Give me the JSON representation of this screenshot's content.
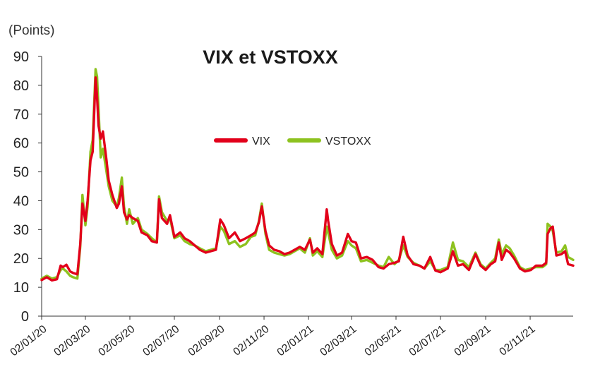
{
  "chart_data": {
    "type": "line",
    "title": "VIX et VSTOXX",
    "ylabel": "(Points)",
    "xlabel": "",
    "ylim": [
      0,
      90
    ],
    "yticks": [
      0,
      10,
      20,
      30,
      40,
      50,
      60,
      70,
      80,
      90
    ],
    "xticks": [
      "02/01/20",
      "02/03/20",
      "02/05/20",
      "02/07/20",
      "02/09/20",
      "02/11/20",
      "02/01/21",
      "02/03/21",
      "02/05/21",
      "02/07/21",
      "02/09/21",
      "02/11/21"
    ],
    "xrange": [
      "2020-01-02",
      "2021-12-31"
    ],
    "grid": false,
    "legend_position": "center",
    "series": [
      {
        "name": "VIX",
        "color": "#e2001a",
        "points": [
          [
            "2020-01-02",
            12.5
          ],
          [
            "2020-01-09",
            13.5
          ],
          [
            "2020-01-16",
            12.4
          ],
          [
            "2020-01-23",
            12.8
          ],
          [
            "2020-01-28",
            17.5
          ],
          [
            "2020-01-31",
            17.0
          ],
          [
            "2020-02-05",
            17.8
          ],
          [
            "2020-02-10",
            15.5
          ],
          [
            "2020-02-14",
            15.0
          ],
          [
            "2020-02-20",
            14.5
          ],
          [
            "2020-02-24",
            25.0
          ],
          [
            "2020-02-27",
            39.0
          ],
          [
            "2020-03-02",
            33.0
          ],
          [
            "2020-03-05",
            40.0
          ],
          [
            "2020-03-09",
            54.0
          ],
          [
            "2020-03-12",
            57.0
          ],
          [
            "2020-03-16",
            82.7
          ],
          [
            "2020-03-18",
            76.0
          ],
          [
            "2020-03-20",
            66.0
          ],
          [
            "2020-03-23",
            61.5
          ],
          [
            "2020-03-26",
            64.0
          ],
          [
            "2020-03-31",
            54.0
          ],
          [
            "2020-04-03",
            47.0
          ],
          [
            "2020-04-08",
            42.0
          ],
          [
            "2020-04-14",
            37.5
          ],
          [
            "2020-04-17",
            39.0
          ],
          [
            "2020-04-21",
            45.0
          ],
          [
            "2020-04-24",
            36.0
          ],
          [
            "2020-04-28",
            33.5
          ],
          [
            "2020-05-01",
            35.0
          ],
          [
            "2020-05-06",
            34.0
          ],
          [
            "2020-05-13",
            33.0
          ],
          [
            "2020-05-18",
            29.0
          ],
          [
            "2020-05-26",
            28.0
          ],
          [
            "2020-06-01",
            26.0
          ],
          [
            "2020-06-08",
            25.5
          ],
          [
            "2020-06-11",
            40.5
          ],
          [
            "2020-06-15",
            34.0
          ],
          [
            "2020-06-22",
            32.0
          ],
          [
            "2020-06-26",
            35.0
          ],
          [
            "2020-07-02",
            27.5
          ],
          [
            "2020-07-10",
            29.0
          ],
          [
            "2020-07-16",
            27.0
          ],
          [
            "2020-07-23",
            26.0
          ],
          [
            "2020-07-30",
            24.5
          ],
          [
            "2020-08-06",
            23.0
          ],
          [
            "2020-08-14",
            22.0
          ],
          [
            "2020-08-21",
            22.5
          ],
          [
            "2020-08-28",
            23.0
          ],
          [
            "2020-09-03",
            33.5
          ],
          [
            "2020-09-08",
            31.5
          ],
          [
            "2020-09-15",
            27.0
          ],
          [
            "2020-09-23",
            29.0
          ],
          [
            "2020-09-30",
            26.0
          ],
          [
            "2020-10-08",
            27.0
          ],
          [
            "2020-10-15",
            28.0
          ],
          [
            "2020-10-21",
            29.0
          ],
          [
            "2020-10-26",
            32.5
          ],
          [
            "2020-10-30",
            38.0
          ],
          [
            "2020-11-04",
            29.5
          ],
          [
            "2020-11-09",
            24.5
          ],
          [
            "2020-11-16",
            23.0
          ],
          [
            "2020-11-23",
            22.5
          ],
          [
            "2020-11-30",
            21.5
          ],
          [
            "2020-12-07",
            22.0
          ],
          [
            "2020-12-14",
            23.0
          ],
          [
            "2020-12-21",
            24.0
          ],
          [
            "2020-12-28",
            23.0
          ],
          [
            "2021-01-04",
            26.5
          ],
          [
            "2021-01-08",
            22.0
          ],
          [
            "2021-01-14",
            23.5
          ],
          [
            "2021-01-21",
            21.5
          ],
          [
            "2021-01-27",
            37.0
          ],
          [
            "2021-01-29",
            33.0
          ],
          [
            "2021-02-03",
            25.0
          ],
          [
            "2021-02-10",
            21.0
          ],
          [
            "2021-02-17",
            22.0
          ],
          [
            "2021-02-25",
            28.5
          ],
          [
            "2021-03-02",
            26.0
          ],
          [
            "2021-03-08",
            25.5
          ],
          [
            "2021-03-15",
            20.0
          ],
          [
            "2021-03-23",
            20.5
          ],
          [
            "2021-03-31",
            19.5
          ],
          [
            "2021-04-08",
            17.0
          ],
          [
            "2021-04-15",
            16.5
          ],
          [
            "2021-04-22",
            18.0
          ],
          [
            "2021-04-30",
            18.5
          ],
          [
            "2021-05-06",
            19.0
          ],
          [
            "2021-05-12",
            27.5
          ],
          [
            "2021-05-18",
            21.0
          ],
          [
            "2021-05-26",
            18.0
          ],
          [
            "2021-06-03",
            17.5
          ],
          [
            "2021-06-10",
            16.5
          ],
          [
            "2021-06-18",
            20.5
          ],
          [
            "2021-06-25",
            15.8
          ],
          [
            "2021-07-02",
            15.2
          ],
          [
            "2021-07-12",
            16.5
          ],
          [
            "2021-07-19",
            22.5
          ],
          [
            "2021-07-26",
            17.5
          ],
          [
            "2021-08-02",
            18.0
          ],
          [
            "2021-08-10",
            16.0
          ],
          [
            "2021-08-19",
            21.5
          ],
          [
            "2021-08-26",
            17.5
          ],
          [
            "2021-09-02",
            16.0
          ],
          [
            "2021-09-09",
            18.0
          ],
          [
            "2021-09-15",
            19.0
          ],
          [
            "2021-09-20",
            25.5
          ],
          [
            "2021-09-24",
            19.5
          ],
          [
            "2021-09-30",
            23.0
          ],
          [
            "2021-10-05",
            22.0
          ],
          [
            "2021-10-11",
            20.0
          ],
          [
            "2021-10-19",
            16.5
          ],
          [
            "2021-10-26",
            15.5
          ],
          [
            "2021-11-03",
            16.0
          ],
          [
            "2021-11-10",
            17.5
          ],
          [
            "2021-11-19",
            17.5
          ],
          [
            "2021-11-24",
            18.5
          ],
          [
            "2021-11-26",
            28.5
          ],
          [
            "2021-11-30",
            30.5
          ],
          [
            "2021-12-03",
            31.0
          ],
          [
            "2021-12-08",
            21.0
          ],
          [
            "2021-12-15",
            21.5
          ],
          [
            "2021-12-20",
            22.5
          ],
          [
            "2021-12-24",
            18.0
          ],
          [
            "2021-12-31",
            17.5
          ]
        ]
      },
      {
        "name": "VSTOXX",
        "color": "#8dc21f",
        "points": [
          [
            "2020-01-02",
            13.0
          ],
          [
            "2020-01-09",
            14.0
          ],
          [
            "2020-01-16",
            13.0
          ],
          [
            "2020-01-23",
            13.5
          ],
          [
            "2020-01-28",
            16.0
          ],
          [
            "2020-01-31",
            16.5
          ],
          [
            "2020-02-05",
            15.5
          ],
          [
            "2020-02-10",
            14.0
          ],
          [
            "2020-02-14",
            13.5
          ],
          [
            "2020-02-20",
            13.0
          ],
          [
            "2020-02-24",
            24.0
          ],
          [
            "2020-02-27",
            42.0
          ],
          [
            "2020-03-02",
            31.5
          ],
          [
            "2020-03-05",
            38.0
          ],
          [
            "2020-03-09",
            57.0
          ],
          [
            "2020-03-12",
            61.0
          ],
          [
            "2020-03-16",
            85.6
          ],
          [
            "2020-03-18",
            83.0
          ],
          [
            "2020-03-20",
            72.0
          ],
          [
            "2020-03-23",
            55.0
          ],
          [
            "2020-03-26",
            58.0
          ],
          [
            "2020-03-31",
            50.0
          ],
          [
            "2020-04-03",
            45.0
          ],
          [
            "2020-04-08",
            40.0
          ],
          [
            "2020-04-14",
            38.0
          ],
          [
            "2020-04-17",
            41.0
          ],
          [
            "2020-04-21",
            48.0
          ],
          [
            "2020-04-24",
            38.0
          ],
          [
            "2020-04-28",
            32.0
          ],
          [
            "2020-05-01",
            37.0
          ],
          [
            "2020-05-06",
            32.0
          ],
          [
            "2020-05-13",
            34.0
          ],
          [
            "2020-05-18",
            30.0
          ],
          [
            "2020-05-26",
            28.5
          ],
          [
            "2020-06-01",
            27.0
          ],
          [
            "2020-06-08",
            25.5
          ],
          [
            "2020-06-11",
            41.5
          ],
          [
            "2020-06-15",
            36.0
          ],
          [
            "2020-06-22",
            33.0
          ],
          [
            "2020-06-26",
            34.0
          ],
          [
            "2020-07-02",
            27.0
          ],
          [
            "2020-07-10",
            28.0
          ],
          [
            "2020-07-16",
            26.0
          ],
          [
            "2020-07-23",
            25.0
          ],
          [
            "2020-07-30",
            24.5
          ],
          [
            "2020-08-06",
            23.5
          ],
          [
            "2020-08-14",
            22.5
          ],
          [
            "2020-08-21",
            23.0
          ],
          [
            "2020-08-28",
            23.5
          ],
          [
            "2020-09-03",
            31.0
          ],
          [
            "2020-09-08",
            29.5
          ],
          [
            "2020-09-15",
            25.0
          ],
          [
            "2020-09-23",
            26.0
          ],
          [
            "2020-09-30",
            24.0
          ],
          [
            "2020-10-08",
            25.0
          ],
          [
            "2020-10-15",
            27.5
          ],
          [
            "2020-10-21",
            28.0
          ],
          [
            "2020-10-26",
            33.0
          ],
          [
            "2020-10-30",
            39.0
          ],
          [
            "2020-11-04",
            28.5
          ],
          [
            "2020-11-09",
            23.0
          ],
          [
            "2020-11-16",
            22.0
          ],
          [
            "2020-11-23",
            21.5
          ],
          [
            "2020-11-30",
            21.0
          ],
          [
            "2020-12-07",
            21.5
          ],
          [
            "2020-12-14",
            22.5
          ],
          [
            "2020-12-21",
            23.5
          ],
          [
            "2020-12-28",
            22.0
          ],
          [
            "2021-01-04",
            27.0
          ],
          [
            "2021-01-08",
            21.0
          ],
          [
            "2021-01-14",
            22.5
          ],
          [
            "2021-01-21",
            20.5
          ],
          [
            "2021-01-27",
            31.0
          ],
          [
            "2021-01-29",
            29.0
          ],
          [
            "2021-02-03",
            23.0
          ],
          [
            "2021-02-10",
            20.0
          ],
          [
            "2021-02-17",
            21.0
          ],
          [
            "2021-02-25",
            26.0
          ],
          [
            "2021-03-02",
            24.5
          ],
          [
            "2021-03-08",
            23.5
          ],
          [
            "2021-03-15",
            19.0
          ],
          [
            "2021-03-23",
            19.5
          ],
          [
            "2021-03-31",
            18.5
          ],
          [
            "2021-04-08",
            17.5
          ],
          [
            "2021-04-15",
            17.0
          ],
          [
            "2021-04-22",
            20.5
          ],
          [
            "2021-04-30",
            18.0
          ],
          [
            "2021-05-06",
            19.5
          ],
          [
            "2021-05-12",
            24.5
          ],
          [
            "2021-05-18",
            20.5
          ],
          [
            "2021-05-26",
            18.5
          ],
          [
            "2021-06-03",
            17.5
          ],
          [
            "2021-06-10",
            16.5
          ],
          [
            "2021-06-18",
            19.0
          ],
          [
            "2021-06-25",
            16.0
          ],
          [
            "2021-07-02",
            16.0
          ],
          [
            "2021-07-12",
            17.0
          ],
          [
            "2021-07-19",
            25.5
          ],
          [
            "2021-07-26",
            19.5
          ],
          [
            "2021-08-02",
            19.0
          ],
          [
            "2021-08-10",
            17.0
          ],
          [
            "2021-08-19",
            22.0
          ],
          [
            "2021-08-26",
            18.0
          ],
          [
            "2021-09-02",
            16.5
          ],
          [
            "2021-09-09",
            18.5
          ],
          [
            "2021-09-15",
            20.0
          ],
          [
            "2021-09-20",
            26.5
          ],
          [
            "2021-09-24",
            21.5
          ],
          [
            "2021-09-30",
            24.5
          ],
          [
            "2021-10-05",
            23.5
          ],
          [
            "2021-10-11",
            21.0
          ],
          [
            "2021-10-19",
            17.0
          ],
          [
            "2021-10-26",
            16.0
          ],
          [
            "2021-11-03",
            16.5
          ],
          [
            "2021-11-10",
            17.0
          ],
          [
            "2021-11-19",
            17.0
          ],
          [
            "2021-11-24",
            18.0
          ],
          [
            "2021-11-26",
            32.0
          ],
          [
            "2021-11-30",
            31.0
          ],
          [
            "2021-12-03",
            29.5
          ],
          [
            "2021-12-08",
            22.0
          ],
          [
            "2021-12-15",
            22.5
          ],
          [
            "2021-12-20",
            24.5
          ],
          [
            "2021-12-24",
            20.5
          ],
          [
            "2021-12-31",
            19.5
          ]
        ]
      }
    ]
  }
}
